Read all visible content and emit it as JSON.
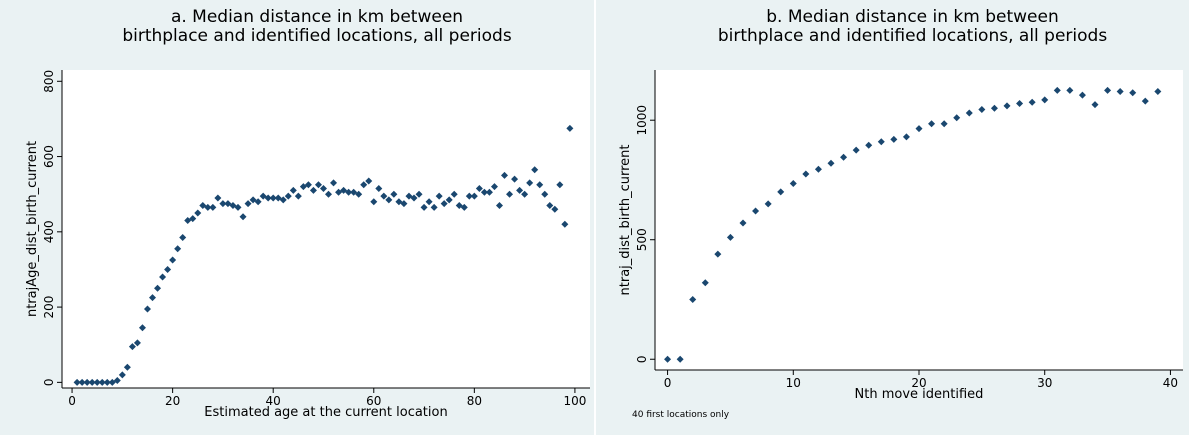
{
  "chart_data": [
    {
      "type": "scatter",
      "title": [
        "a. Median distance in km between",
        "birthplace and identified locations, all periods"
      ],
      "x_label": "Estimated age at the current location",
      "y_label": "ntrajAge_dist_birth_current",
      "color": "#1a476f",
      "xlim": [
        -2,
        103
      ],
      "ylim": [
        -15,
        830
      ],
      "xticks": [
        0,
        20,
        40,
        60,
        80,
        100
      ],
      "yticks": [
        0,
        200,
        400,
        600,
        800
      ],
      "x": [
        1,
        2,
        3,
        4,
        5,
        6,
        7,
        8,
        9,
        10,
        11,
        12,
        13,
        14,
        15,
        16,
        17,
        18,
        19,
        20,
        21,
        22,
        23,
        24,
        25,
        26,
        27,
        28,
        29,
        30,
        31,
        32,
        33,
        34,
        35,
        36,
        37,
        38,
        39,
        40,
        41,
        42,
        43,
        44,
        45,
        46,
        47,
        48,
        49,
        50,
        51,
        52,
        53,
        54,
        55,
        56,
        57,
        58,
        59,
        60,
        61,
        62,
        63,
        64,
        65,
        66,
        67,
        68,
        69,
        70,
        71,
        72,
        73,
        74,
        75,
        76,
        77,
        78,
        79,
        80,
        81,
        82,
        83,
        84,
        85,
        86,
        87,
        88,
        89,
        90,
        91,
        92,
        93,
        94,
        95,
        96,
        97,
        98,
        99
      ],
      "values": [
        0,
        0,
        0,
        0,
        0,
        0,
        0,
        0,
        5,
        20,
        40,
        95,
        105,
        145,
        195,
        225,
        250,
        280,
        300,
        325,
        355,
        385,
        430,
        435,
        450,
        470,
        465,
        465,
        490,
        475,
        475,
        470,
        465,
        440,
        475,
        485,
        480,
        495,
        490,
        490,
        490,
        485,
        495,
        510,
        495,
        520,
        525,
        510,
        525,
        515,
        500,
        530,
        505,
        510,
        505,
        505,
        500,
        525,
        535,
        480,
        515,
        495,
        485,
        500,
        480,
        475,
        495,
        490,
        500,
        465,
        480,
        465,
        495,
        475,
        485,
        500,
        470,
        465,
        495,
        495,
        515,
        505,
        505,
        520,
        470,
        550,
        500,
        540,
        510,
        500,
        530,
        565,
        525,
        500,
        470,
        460,
        525,
        420,
        675
      ]
    },
    {
      "type": "scatter",
      "title": [
        "b. Median distance in km between",
        "birthplace and identified locations, all periods"
      ],
      "x_label": "Nth move identified",
      "y_label": "ntraj_dist_birth_current",
      "note": "40 first locations only",
      "color": "#1a476f",
      "xlim": [
        -1,
        41
      ],
      "ylim": [
        -45,
        1210
      ],
      "xticks": [
        0,
        10,
        20,
        30,
        40
      ],
      "yticks": [
        0,
        500,
        1000
      ],
      "x": [
        0,
        1,
        2,
        3,
        4,
        5,
        6,
        7,
        8,
        9,
        10,
        11,
        12,
        13,
        14,
        15,
        16,
        17,
        18,
        19,
        20,
        21,
        22,
        23,
        24,
        25,
        26,
        27,
        28,
        29,
        30,
        31,
        32,
        33,
        34,
        35,
        36,
        37,
        38,
        39
      ],
      "values": [
        0,
        0,
        250,
        320,
        440,
        510,
        570,
        620,
        650,
        700,
        735,
        775,
        795,
        820,
        845,
        875,
        895,
        910,
        920,
        930,
        965,
        985,
        985,
        1010,
        1030,
        1045,
        1050,
        1060,
        1070,
        1075,
        1085,
        1125,
        1125,
        1105,
        1065,
        1125,
        1120,
        1115,
        1080,
        1120
      ]
    }
  ]
}
